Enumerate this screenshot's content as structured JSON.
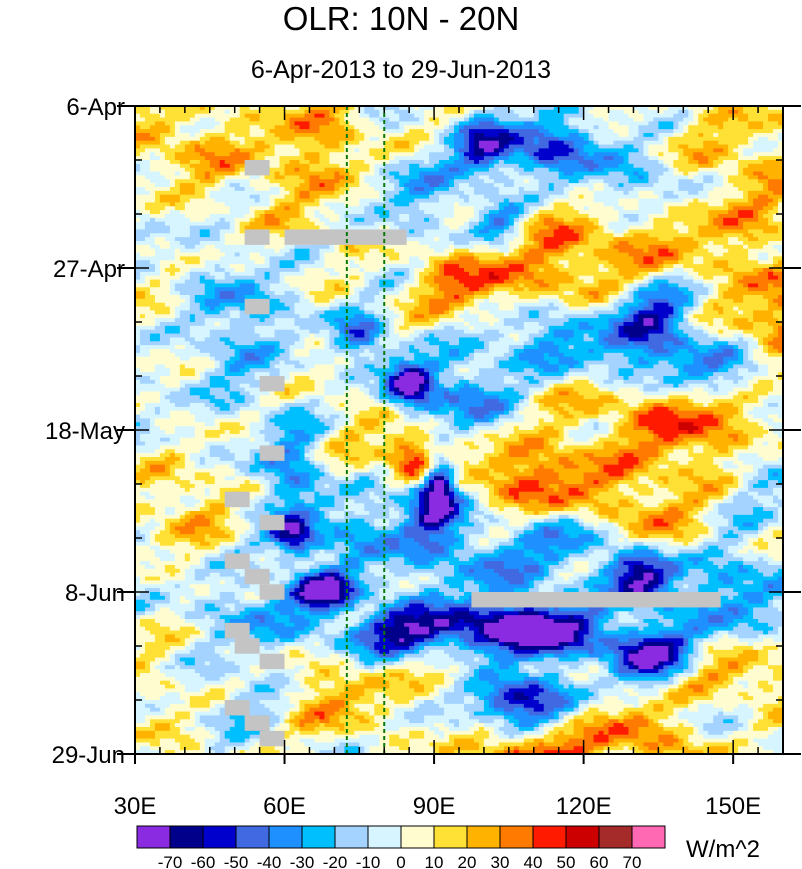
{
  "chart_data": {
    "type": "heatmap",
    "title": "OLR: 10N - 20N",
    "subtitle": "6-Apr-2013 to 29-Jun-2013",
    "xlabel": "",
    "ylabel": "",
    "xlim": [
      30,
      160
    ],
    "ylim_days": [
      0,
      84
    ],
    "x_ticks": [
      {
        "value": 30,
        "label": "30E"
      },
      {
        "value": 60,
        "label": "60E"
      },
      {
        "value": 90,
        "label": "90E"
      },
      {
        "value": 120,
        "label": "120E"
      },
      {
        "value": 150,
        "label": "150E"
      }
    ],
    "y_ticks": [
      {
        "day": 0,
        "label": "6-Apr"
      },
      {
        "day": 21,
        "label": "27-Apr"
      },
      {
        "day": 42,
        "label": "18-May"
      },
      {
        "day": 63,
        "label": "8-Jun"
      },
      {
        "day": 84,
        "label": "29-Jun"
      }
    ],
    "reference_lines_lon": [
      72.5,
      80
    ],
    "colorbar": {
      "units": "W/m^2",
      "levels": [
        -70,
        -60,
        -50,
        -40,
        -30,
        -20,
        -10,
        0,
        10,
        20,
        30,
        40,
        50,
        60,
        70
      ],
      "colors": [
        "#8a2be2",
        "#00008b",
        "#0000cd",
        "#4169e1",
        "#1e90ff",
        "#00bfff",
        "#a4d3ff",
        "#d6f5ff",
        "#fffdd0",
        "#ffe135",
        "#ffb300",
        "#ff7a00",
        "#ff1a00",
        "#cc0000",
        "#a52a2a",
        "#ff69b4"
      ]
    },
    "anomalies": [
      {
        "lon": 85,
        "day": 36,
        "value": -75,
        "slon": 3.5,
        "sday": 2.2
      },
      {
        "lon": 91,
        "day": 48.5,
        "value": -75,
        "slon": 2.2,
        "sday": 2.5
      },
      {
        "lon": 132,
        "day": 61,
        "value": -76,
        "slon": 5,
        "sday": 2.5
      },
      {
        "lon": 112,
        "day": 68,
        "value": -72,
        "slon": 8,
        "sday": 2.6
      },
      {
        "lon": 133,
        "day": 71,
        "value": -72,
        "slon": 6,
        "sday": 2.6
      },
      {
        "lon": 106,
        "day": 77,
        "value": -70,
        "slon": 7,
        "sday": 2.2
      },
      {
        "lon": 68,
        "day": 63,
        "value": -70,
        "slon": 4.5,
        "sday": 1.7
      },
      {
        "lon": 62,
        "day": 56,
        "value": -55,
        "slon": 3,
        "sday": 1.7
      },
      {
        "lon": 84,
        "day": 68,
        "value": -50,
        "slon": 9,
        "sday": 2.2
      },
      {
        "lon": 98,
        "day": 68,
        "value": -40,
        "slon": 11,
        "sday": 2.6
      },
      {
        "lon": 113,
        "day": 5,
        "value": -50,
        "slon": 8,
        "sday": 2.6
      },
      {
        "lon": 100,
        "day": 5.5,
        "value": -45,
        "slon": 4,
        "sday": 3
      },
      {
        "lon": 103,
        "day": 15,
        "value": -45,
        "slon": 4,
        "sday": 2.2
      },
      {
        "lon": 134,
        "day": 27,
        "value": -50,
        "slon": 6,
        "sday": 3
      },
      {
        "lon": 150,
        "day": 35,
        "value": -40,
        "slon": 10,
        "sday": 3
      },
      {
        "lon": 89,
        "day": 52,
        "value": -50,
        "slon": 4,
        "sday": 3
      },
      {
        "lon": 75,
        "day": 30,
        "value": -45,
        "slon": 4,
        "sday": 2.2
      },
      {
        "lon": 62,
        "day": 47,
        "value": -35,
        "slon": 5,
        "sday": 6
      },
      {
        "lon": 52,
        "day": 25,
        "value": -25,
        "slon": 8,
        "sday": 4
      },
      {
        "lon": 45,
        "day": 32,
        "value": -25,
        "slon": 7,
        "sday": 4
      },
      {
        "lon": 118,
        "day": 56,
        "value": -35,
        "slon": 7,
        "sday": 3
      },
      {
        "lon": 100,
        "day": 59,
        "value": -30,
        "slon": 10,
        "sday": 4
      },
      {
        "lon": 150,
        "day": 63,
        "value": -35,
        "slon": 8,
        "sday": 5
      },
      {
        "lon": 132,
        "day": 33,
        "value": -35,
        "slon": 10,
        "sday": 3
      },
      {
        "lon": 112,
        "day": 30,
        "value": -30,
        "slon": 8,
        "sday": 3
      },
      {
        "lon": 97,
        "day": 38,
        "value": -35,
        "slon": 6,
        "sday": 4
      },
      {
        "lon": 76,
        "day": 56,
        "value": -25,
        "slon": 8,
        "sday": 4
      },
      {
        "lon": 55,
        "day": 66,
        "value": -25,
        "slon": 8,
        "sday": 3
      },
      {
        "lon": 86,
        "day": 11,
        "value": -25,
        "slon": 7,
        "sday": 4
      },
      {
        "lon": 133,
        "day": 10,
        "value": -25,
        "slon": 12,
        "sday": 3
      },
      {
        "lon": 155,
        "day": 47,
        "value": -25,
        "slon": 8,
        "sday": 4
      },
      {
        "lon": 147,
        "day": 78,
        "value": -30,
        "slon": 10,
        "sday": 3
      },
      {
        "lon": 118,
        "day": 81,
        "value": -20,
        "slon": 10,
        "sday": 3
      },
      {
        "lon": 55,
        "day": 77,
        "value": -20,
        "slon": 10,
        "sday": 3
      },
      {
        "lon": 110,
        "day": 84,
        "value": 48,
        "slon": 8,
        "sday": 2.5
      },
      {
        "lon": 130,
        "day": 81,
        "value": 42,
        "slon": 11,
        "sday": 3
      },
      {
        "lon": 150,
        "day": 75,
        "value": 40,
        "slon": 9,
        "sday": 3
      },
      {
        "lon": 86,
        "day": 46.5,
        "value": 40,
        "slon": 4,
        "sday": 2
      },
      {
        "lon": 86,
        "day": 44,
        "value": 28,
        "slon": 5,
        "sday": 2
      },
      {
        "lon": 68,
        "day": 77,
        "value": 35,
        "slon": 8,
        "sday": 3
      },
      {
        "lon": 145,
        "day": 42,
        "value": 35,
        "slon": 10,
        "sday": 5
      },
      {
        "lon": 160,
        "day": 28,
        "value": 32,
        "slon": 8,
        "sday": 6
      },
      {
        "lon": 150,
        "day": 10,
        "value": 25,
        "slon": 10,
        "sday": 6
      },
      {
        "lon": 95,
        "day": 23,
        "value": 30,
        "slon": 6,
        "sday": 3
      },
      {
        "lon": 112,
        "day": 22,
        "value": 25,
        "slon": 12,
        "sday": 3
      },
      {
        "lon": 117,
        "day": 50,
        "value": 30,
        "slon": 10,
        "sday": 4
      },
      {
        "lon": 105,
        "day": 47,
        "value": 25,
        "slon": 8,
        "sday": 3
      },
      {
        "lon": 68,
        "day": 5,
        "value": 25,
        "slon": 8,
        "sday": 6
      },
      {
        "lon": 40,
        "day": 5,
        "value": 25,
        "slon": 9,
        "sday": 4
      },
      {
        "lon": 40,
        "day": 30,
        "value": 20,
        "slon": 6,
        "sday": 4
      },
      {
        "lon": 40,
        "day": 52,
        "value": 22,
        "slon": 7,
        "sday": 4
      },
      {
        "lon": 95,
        "day": 73,
        "value": 20,
        "slon": 6,
        "sday": 4
      },
      {
        "lon": 130,
        "day": 38,
        "value": 20,
        "slon": 12,
        "sday": 4
      },
      {
        "lon": 110,
        "day": 15,
        "value": 20,
        "slon": 8,
        "sday": 3
      },
      {
        "lon": 130,
        "day": 18,
        "value": 20,
        "slon": 10,
        "sday": 3
      },
      {
        "lon": 36,
        "day": 77,
        "value": 15,
        "slon": 5,
        "sday": 6
      },
      {
        "lon": 70,
        "day": 42,
        "value": 12,
        "slon": 6,
        "sday": 6
      },
      {
        "lon": 58,
        "day": 15,
        "value": 8,
        "slon": 8,
        "sday": 8
      },
      {
        "lon": 135,
        "day": 55,
        "value": 20,
        "slon": 8,
        "sday": 4
      }
    ],
    "missing_segments": [
      {
        "lon0": 52,
        "lon1": 57,
        "day0": 7,
        "day1": 9
      },
      {
        "lon0": 52,
        "lon1": 57,
        "day0": 16,
        "day1": 18
      },
      {
        "lon0": 60,
        "lon1": 84.5,
        "day0": 16,
        "day1": 18
      },
      {
        "lon0": 52,
        "lon1": 57,
        "day0": 25,
        "day1": 27
      },
      {
        "lon0": 55,
        "lon1": 60,
        "day0": 35,
        "day1": 37
      },
      {
        "lon0": 55,
        "lon1": 60,
        "day0": 44,
        "day1": 46
      },
      {
        "lon0": 48,
        "lon1": 53,
        "day0": 50,
        "day1": 52
      },
      {
        "lon0": 55,
        "lon1": 60,
        "day0": 53,
        "day1": 55
      },
      {
        "lon0": 48,
        "lon1": 53,
        "day0": 58,
        "day1": 60
      },
      {
        "lon0": 52,
        "lon1": 57,
        "day0": 60,
        "day1": 62
      },
      {
        "lon0": 55,
        "lon1": 60,
        "day0": 62,
        "day1": 64
      },
      {
        "lon0": 97.5,
        "lon1": 147.5,
        "day0": 63,
        "day1": 65
      },
      {
        "lon0": 48,
        "lon1": 53,
        "day0": 67,
        "day1": 69
      },
      {
        "lon0": 50,
        "lon1": 55,
        "day0": 69,
        "day1": 71
      },
      {
        "lon0": 55,
        "lon1": 60,
        "day0": 71,
        "day1": 73
      },
      {
        "lon0": 48,
        "lon1": 53,
        "day0": 77,
        "day1": 79
      },
      {
        "lon0": 52,
        "lon1": 57,
        "day0": 79,
        "day1": 81
      },
      {
        "lon0": 55,
        "lon1": 60,
        "day0": 81,
        "day1": 83
      }
    ]
  }
}
